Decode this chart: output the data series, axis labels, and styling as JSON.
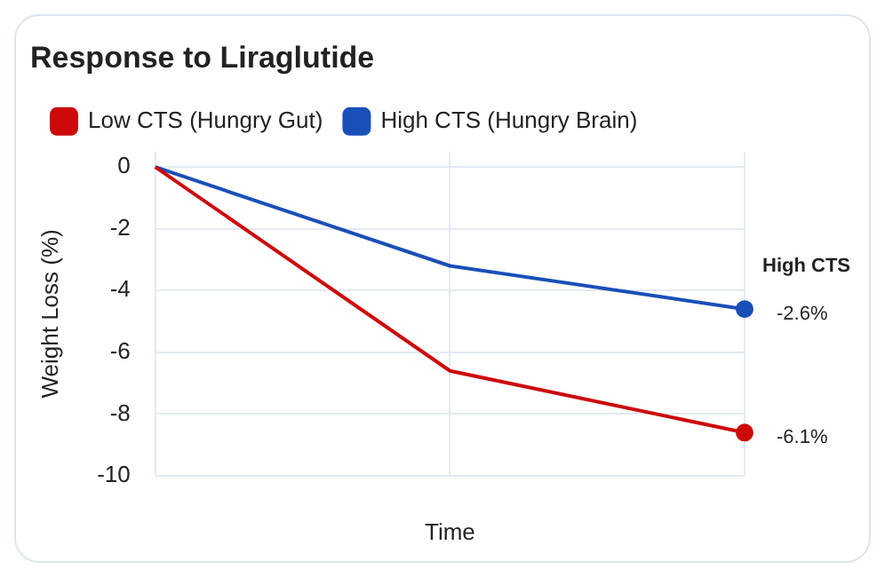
{
  "chart_data": {
    "type": "line",
    "title": "Response to Liraglutide",
    "xlabel": "Time",
    "ylabel": "Weight Loss (%)",
    "categories": [
      null,
      null,
      null
    ],
    "series": [
      {
        "name": "Low CTS (Hungry Gut)",
        "color": "#cc0a0a",
        "values": [
          0,
          -6.6,
          -8.6
        ]
      },
      {
        "name": "High CTS (Hungry Brain)",
        "color": "#1a4fb8",
        "values": [
          0,
          -3.2,
          -4.6
        ]
      }
    ],
    "ylim": [
      -10,
      0.5
    ],
    "yticks": [
      0,
      -2,
      -4,
      -6,
      -8,
      -10
    ],
    "grid": true,
    "legend": "top left",
    "annotations": [
      "-6.1%",
      "-2.6%",
      "High CTS"
    ]
  }
}
